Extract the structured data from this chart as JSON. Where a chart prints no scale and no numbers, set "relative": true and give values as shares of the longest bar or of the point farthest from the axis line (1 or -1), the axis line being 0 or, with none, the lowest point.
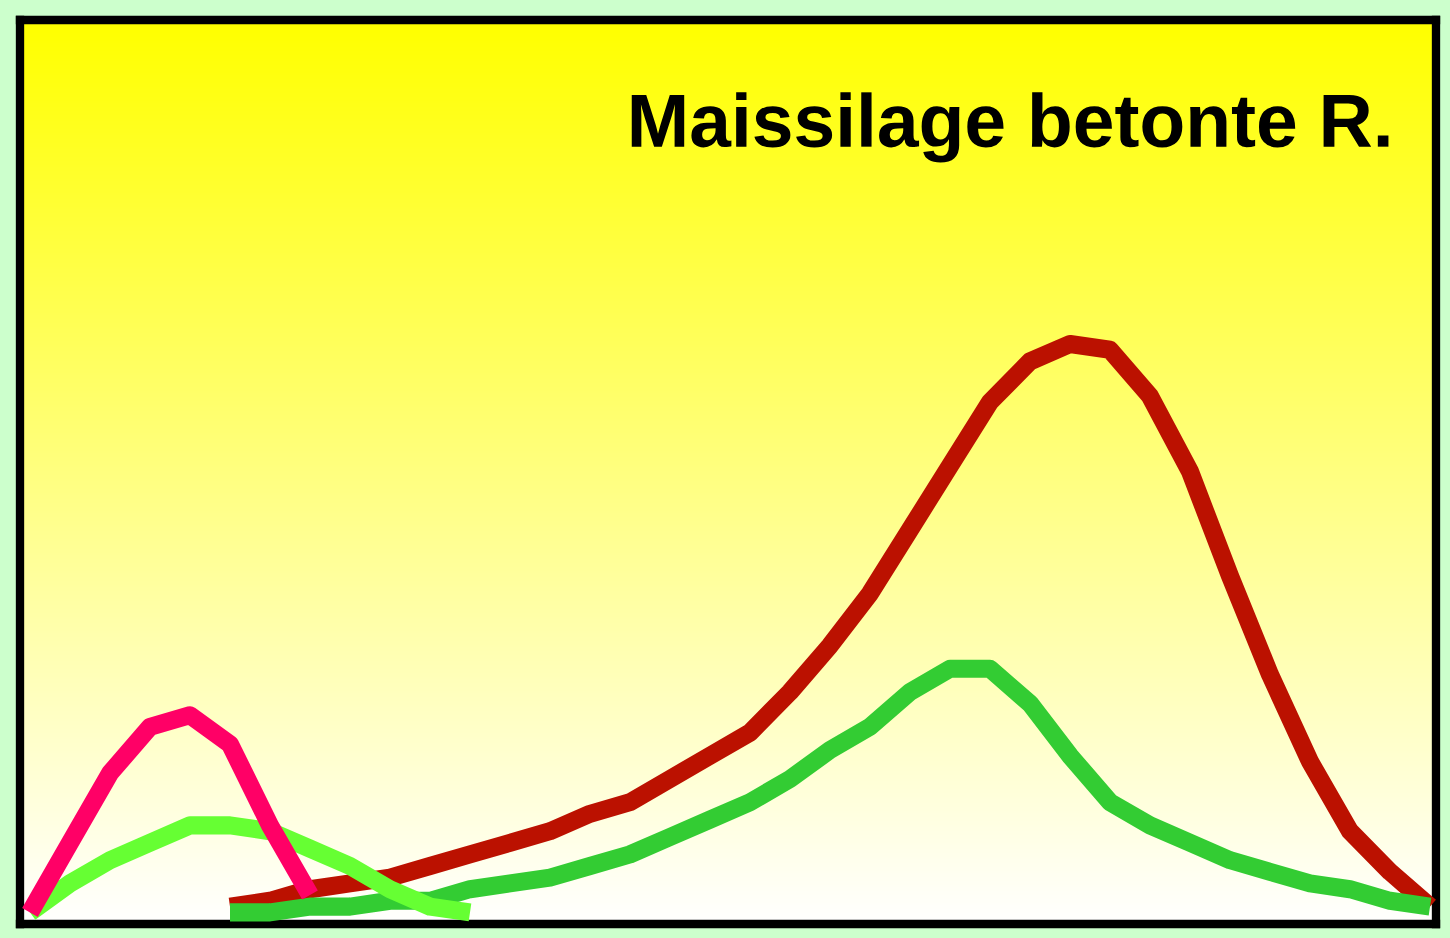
{
  "chart_data": {
    "type": "line",
    "title": "Maissilage betonte R.",
    "relative": true,
    "marker": "none",
    "line_style": "solid",
    "categories": [
      null,
      null,
      null,
      null,
      null,
      null,
      null,
      null,
      null,
      null,
      null,
      null,
      null,
      null,
      null,
      null,
      null,
      null,
      null,
      null,
      null,
      null,
      null,
      null,
      null,
      null,
      null,
      null,
      null,
      null,
      null,
      null,
      null,
      null,
      null,
      null
    ],
    "series": [
      {
        "color": "#bb1100",
        "values": [
          null,
          null,
          null,
          null,
          null,
          0.03,
          0.04,
          0.06,
          0.07,
          0.08,
          0.1,
          0.12,
          0.14,
          0.16,
          0.19,
          0.21,
          0.25,
          0.29,
          0.33,
          0.4,
          0.48,
          0.57,
          0.68,
          0.79,
          0.9,
          0.97,
          1.0,
          0.99,
          0.91,
          0.78,
          0.6,
          0.43,
          0.28,
          0.16,
          0.09,
          0.03
        ]
      },
      {
        "color": "#33cc33",
        "values": [
          null,
          null,
          null,
          null,
          null,
          0.02,
          0.02,
          0.03,
          0.03,
          0.04,
          0.04,
          0.06,
          0.07,
          0.08,
          0.1,
          0.12,
          0.15,
          0.18,
          0.21,
          0.25,
          0.3,
          0.34,
          0.4,
          0.44,
          0.44,
          0.38,
          0.29,
          0.21,
          0.17,
          0.14,
          0.11,
          0.09,
          0.07,
          0.06,
          0.04,
          0.03
        ]
      },
      {
        "color": "#66ff33",
        "values": [
          0.02,
          0.07,
          0.11,
          0.14,
          0.17,
          0.17,
          0.16,
          0.13,
          0.1,
          0.06,
          0.03,
          0.02,
          null,
          null,
          null,
          null,
          null,
          null,
          null,
          null,
          null,
          null,
          null,
          null,
          null,
          null,
          null,
          null,
          null,
          null,
          null,
          null,
          null,
          null,
          null,
          null
        ]
      },
      {
        "color": "#ff0066",
        "values": [
          0.02,
          0.14,
          0.26,
          0.34,
          0.36,
          0.31,
          0.17,
          0.05,
          null,
          null,
          null,
          null,
          null,
          null,
          null,
          null,
          null,
          null,
          null,
          null,
          null,
          null,
          null,
          null,
          null,
          null,
          null,
          null,
          null,
          null,
          null,
          null,
          null,
          null,
          null,
          null
        ]
      }
    ]
  }
}
